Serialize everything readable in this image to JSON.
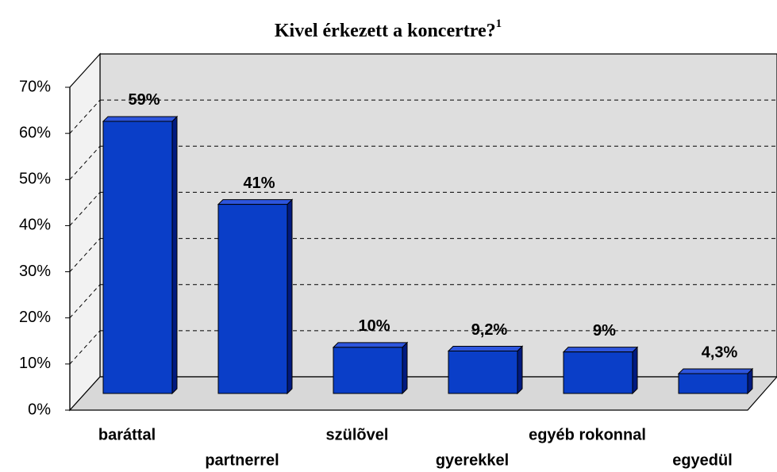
{
  "chart_data": {
    "type": "bar3d",
    "title": "Kivel érkezett a koncertre?",
    "title_superscript": "1",
    "categories": [
      "baráttal",
      "partnerrel",
      "szülõvel",
      "gyerekkel",
      "egyéb rokonnal",
      "egyedül"
    ],
    "values": [
      59,
      41,
      10,
      9.2,
      9,
      4.3
    ],
    "value_labels": [
      "59%",
      "41%",
      "10%",
      "9,2%",
      "9%",
      "4,3%"
    ],
    "color": "#0a3ec8",
    "ylim": [
      0,
      70
    ],
    "yticks": [
      {
        "value": 0,
        "label": "0%"
      },
      {
        "value": 10,
        "label": "10%"
      },
      {
        "value": 20,
        "label": "20%"
      },
      {
        "value": 30,
        "label": "30%"
      },
      {
        "value": 40,
        "label": "40%"
      },
      {
        "value": 50,
        "label": "50%"
      },
      {
        "value": 60,
        "label": "60%"
      },
      {
        "value": 70,
        "label": "70%"
      }
    ],
    "grid": true
  }
}
